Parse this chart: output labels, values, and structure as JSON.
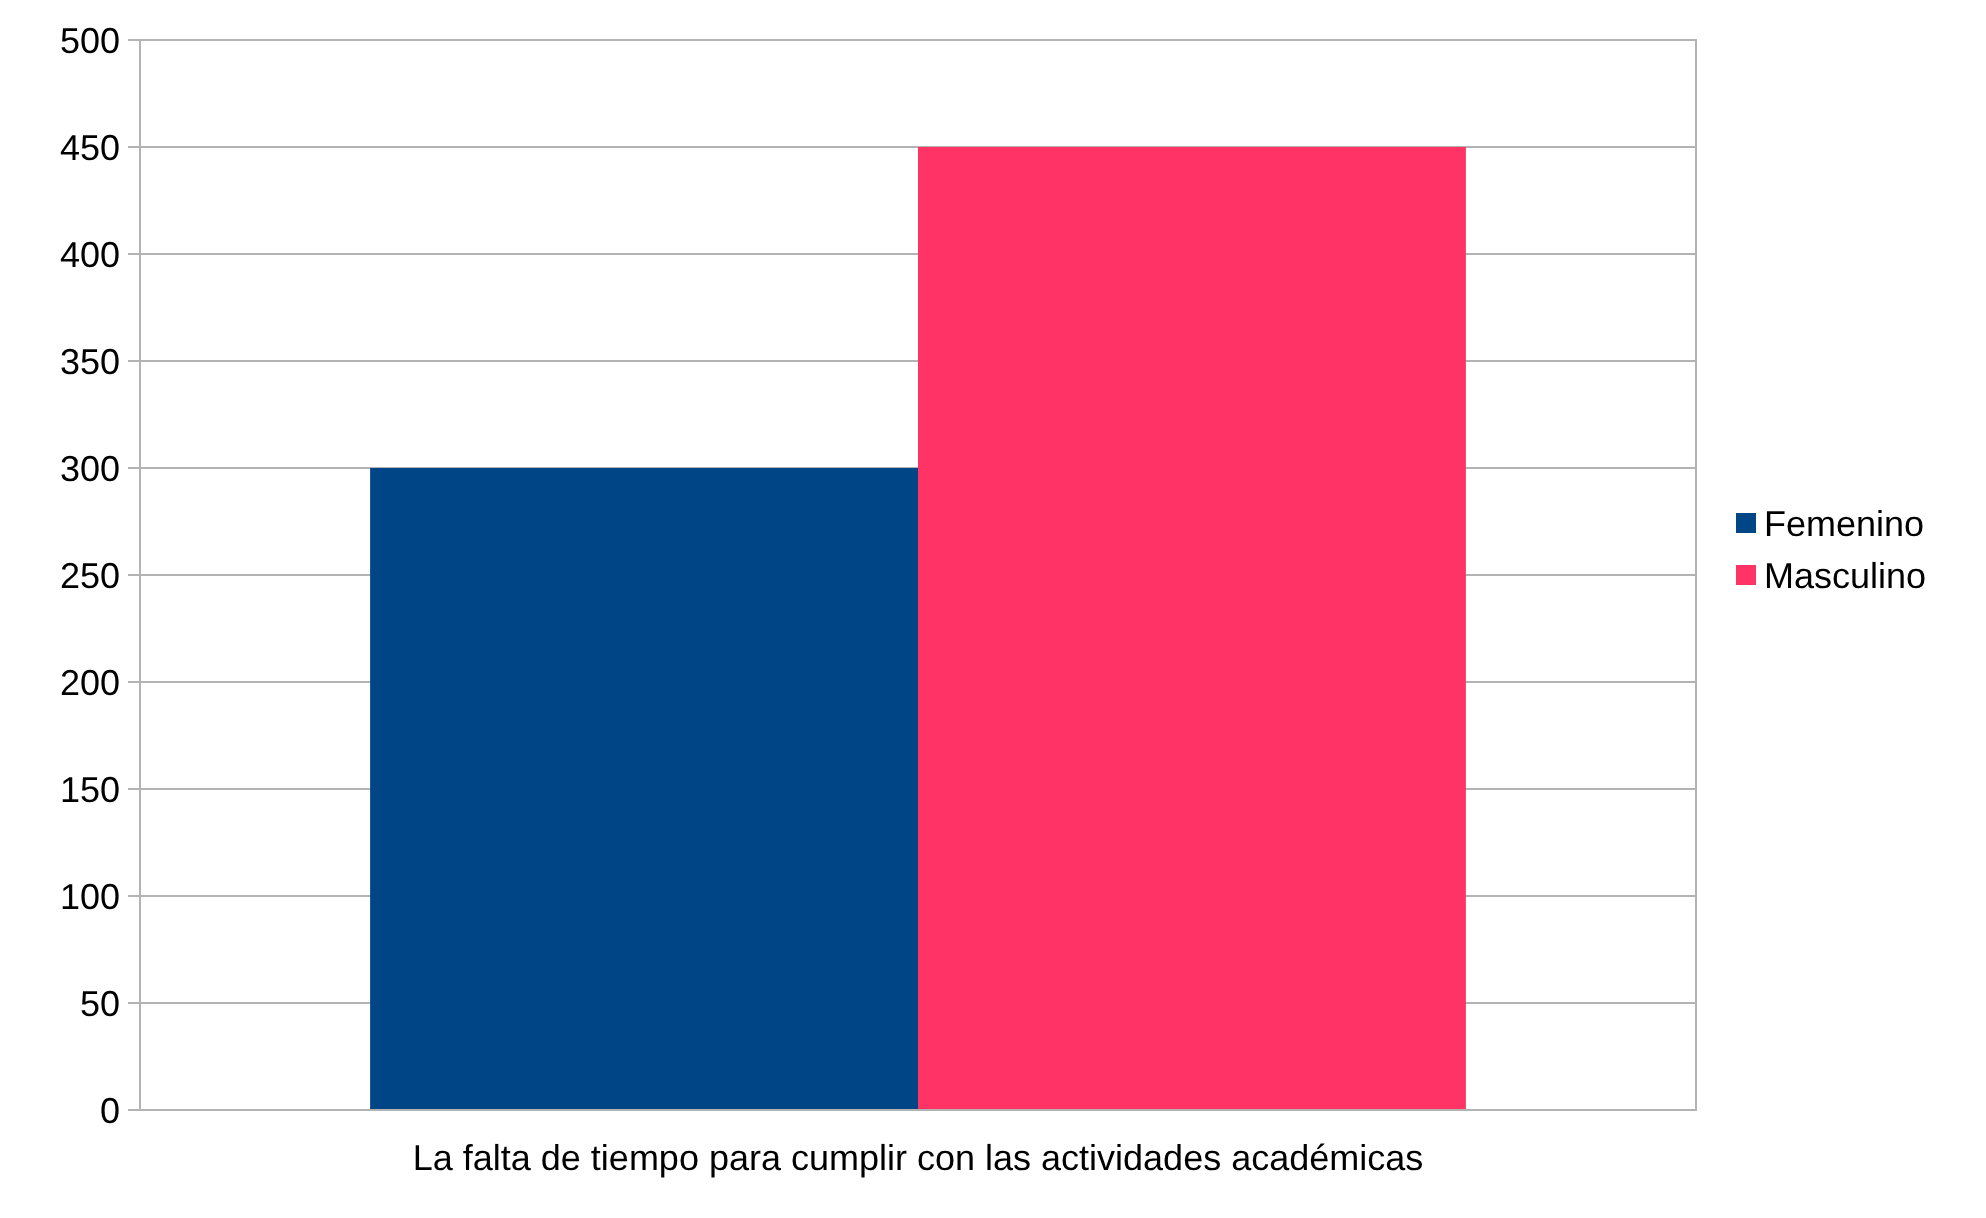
{
  "chart_data": {
    "type": "bar",
    "categories": [
      "La falta de tiempo para cumplir con las actividades académicas"
    ],
    "series": [
      {
        "name": "Femenino",
        "color": "#004586",
        "values": [
          300
        ]
      },
      {
        "name": "Masculino",
        "color": "#ff3366",
        "values": [
          450
        ]
      }
    ],
    "ylim": [
      0,
      500
    ],
    "yticks": [
      0,
      50,
      100,
      150,
      200,
      250,
      300,
      350,
      400,
      450,
      500
    ],
    "grid": "y",
    "legend": "right"
  }
}
